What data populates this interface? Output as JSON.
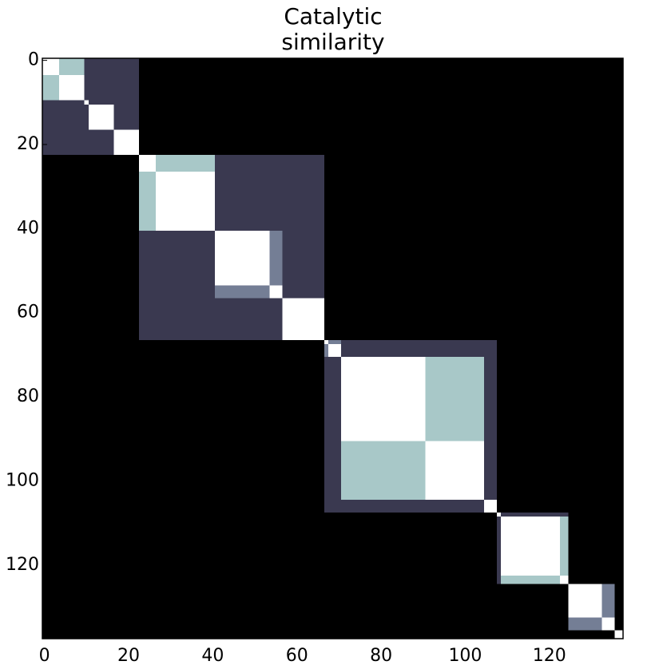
{
  "chart_data": {
    "type": "heatmap",
    "title": [
      "Catalytic",
      "similarity"
    ],
    "xlim": [
      -0.5,
      137.5
    ],
    "ylim": [
      137.5,
      -0.5
    ],
    "xticks": [
      0,
      20,
      40,
      60,
      80,
      100,
      120
    ],
    "yticks": [
      0,
      20,
      40,
      60,
      80,
      100,
      120
    ],
    "colorscale": [
      [
        0,
        "#000000"
      ],
      [
        0.25,
        "#3a3950"
      ],
      [
        0.5,
        "#747e95"
      ],
      [
        0.75,
        "#a8c8c8"
      ],
      [
        1,
        "#ffffff"
      ]
    ],
    "blocks": [
      {
        "span": [
          0,
          138
        ],
        "value": 0
      },
      {
        "span": [
          0,
          23
        ],
        "value": 0.25
      },
      {
        "span": [
          0,
          10
        ],
        "value": 0.75
      },
      {
        "span": [
          0,
          4
        ],
        "value": 1
      },
      {
        "span": [
          4,
          10
        ],
        "value": 1
      },
      {
        "span": [
          10,
          11
        ],
        "value": 1
      },
      {
        "span": [
          11,
          17
        ],
        "value": 1
      },
      {
        "span": [
          17,
          23
        ],
        "value": 1
      },
      {
        "span": [
          23,
          67
        ],
        "value": 0.25
      },
      {
        "span": [
          23,
          41
        ],
        "value": 0.75
      },
      {
        "span": [
          23,
          27
        ],
        "value": 1
      },
      {
        "span": [
          27,
          41
        ],
        "value": 1
      },
      {
        "span": [
          41,
          57
        ],
        "value": 0.5
      },
      {
        "span": [
          41,
          54
        ],
        "value": 1
      },
      {
        "span": [
          54,
          57
        ],
        "value": 1
      },
      {
        "span": [
          57,
          67
        ],
        "value": 1
      },
      {
        "span": [
          67,
          108
        ],
        "value": 0.25
      },
      {
        "span": [
          67,
          71
        ],
        "value": 0.5
      },
      {
        "span": [
          67,
          68
        ],
        "value": 1
      },
      {
        "span": [
          68,
          71
        ],
        "value": 1
      },
      {
        "span": [
          71,
          105
        ],
        "value": 0.75
      },
      {
        "span": [
          71,
          91
        ],
        "value": 1
      },
      {
        "span": [
          91,
          105
        ],
        "value": 1
      },
      {
        "span": [
          105,
          108
        ],
        "value": 1
      },
      {
        "span": [
          108,
          125
        ],
        "value": 0.25
      },
      {
        "span": [
          109,
          125
        ],
        "value": 0.75
      },
      {
        "span": [
          108,
          109
        ],
        "value": 1
      },
      {
        "span": [
          109,
          123
        ],
        "value": 1
      },
      {
        "span": [
          123,
          125
        ],
        "value": 1
      },
      {
        "span": [
          125,
          136
        ],
        "value": 0.5
      },
      {
        "span": [
          125,
          133
        ],
        "value": 1
      },
      {
        "span": [
          133,
          136
        ],
        "value": 1
      },
      {
        "span": [
          136,
          138
        ],
        "value": 1
      }
    ]
  }
}
